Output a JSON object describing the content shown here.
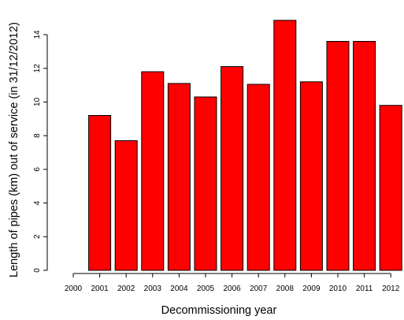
{
  "chart_data": {
    "type": "bar",
    "title": "",
    "xlabel": "Decommissioning year",
    "ylabel": "Length of pipes (km) out of service (in 31/12/2012)",
    "categories": [
      "2000",
      "2001",
      "2002",
      "2003",
      "2004",
      "2005",
      "2006",
      "2007",
      "2008",
      "2009",
      "2010",
      "2011",
      "2012"
    ],
    "values": [
      0,
      9.2,
      7.7,
      11.8,
      11.1,
      10.3,
      12.1,
      11.05,
      14.85,
      11.2,
      13.6,
      13.6,
      9.8
    ],
    "ylim": [
      0,
      15
    ],
    "yticks": [
      0,
      2,
      4,
      6,
      8,
      10,
      12,
      14
    ],
    "ytick_labels": [
      "0",
      "2",
      "4",
      "6",
      "8",
      "10",
      "12",
      "14"
    ],
    "grid": false,
    "bar_color": "#ff0000",
    "bar_edge_color": "#000000"
  }
}
